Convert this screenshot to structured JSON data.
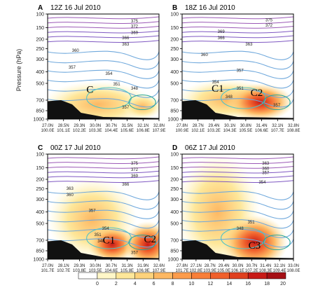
{
  "chart_data": {
    "type": "contour",
    "ylabel": "Pressure (hPa)",
    "y_ticks": [
      "100",
      "150",
      "200",
      "250",
      "300",
      "400",
      "500",
      "700",
      "850",
      "1000"
    ],
    "colorbar": {
      "ticks": [
        "0",
        "2",
        "4",
        "6",
        "8",
        "10",
        "12",
        "14",
        "16",
        "18",
        "20"
      ],
      "colors": [
        "#ffffff",
        "#fff7c8",
        "#fee79a",
        "#fdd27b",
        "#fdb863",
        "#fc9c4c",
        "#f97f39",
        "#f0602c",
        "#e0401f",
        "#c81b18",
        "#a50f15"
      ]
    },
    "panels": [
      {
        "letter": "A",
        "title": "12Z 16 Jul 2010",
        "x_ticks": [
          [
            "27.0N",
            "100.0E"
          ],
          [
            "28.5N",
            "101.1E"
          ],
          [
            "29.3N",
            "102.2E"
          ],
          [
            "30.0N",
            "103.3E"
          ],
          [
            "30.7N",
            "104.4E"
          ],
          [
            "31.5N",
            "105.6E"
          ],
          [
            "32.1N",
            "106.8E"
          ],
          [
            "32.8N",
            "107.9E"
          ]
        ],
        "contour_labels": [
          "375",
          "372",
          "369",
          "366",
          "363",
          "360",
          "357",
          "354",
          "351",
          "348",
          "357"
        ],
        "markers": [
          "C"
        ]
      },
      {
        "letter": "B",
        "title": "18Z 16 Jul 2010",
        "x_ticks": [
          [
            "27.8N",
            "100.9E"
          ],
          [
            "28.7N",
            "102.1E"
          ],
          [
            "29.4N",
            "103.2E"
          ],
          [
            "30.1N",
            "104.3E"
          ],
          [
            "30.8N",
            "105.5E"
          ],
          [
            "31.4N",
            "106.6E"
          ],
          [
            "32.1N",
            "107.7E"
          ],
          [
            "32.8N",
            "108.8E"
          ]
        ],
        "contour_labels": [
          "375",
          "372",
          "369",
          "366",
          "363",
          "360",
          "357",
          "354",
          "351",
          "348",
          "357"
        ],
        "markers": [
          "C1",
          "C2"
        ]
      },
      {
        "letter": "C",
        "title": "00Z 17 Jul 2010",
        "x_ticks": [
          [
            "27.0N",
            "101.7E"
          ],
          [
            "28.1N",
            "102.7E"
          ],
          [
            "29.3N",
            "103.8E"
          ],
          [
            "30.0N",
            "103.5E"
          ],
          [
            "30.7N",
            "104.6E"
          ],
          [
            "31.3N",
            "105.8E"
          ],
          [
            "31.9N",
            "106.9E"
          ],
          [
            "32.6N",
            "107.9E"
          ]
        ],
        "contour_labels": [
          "375",
          "372",
          "369",
          "366",
          "363",
          "360",
          "357",
          "354",
          "351",
          "348",
          "357"
        ],
        "markers": [
          "C1",
          "C2"
        ]
      },
      {
        "letter": "D",
        "title": "06Z 17 Jul 2010",
        "x_ticks": [
          [
            "27.8N",
            "101.7E"
          ],
          [
            "27.1N",
            "102.8E"
          ],
          [
            "28.7N",
            "103.9E"
          ],
          [
            "29.4N",
            "105.0E"
          ],
          [
            "30.0N",
            "106.1E"
          ],
          [
            "30.7N",
            "107.2E"
          ],
          [
            "31.4N",
            "108.3E"
          ],
          [
            "32.1N",
            "109.4E"
          ],
          [
            "33.0N",
            "108.0E"
          ]
        ],
        "contour_labels": [
          "363",
          "360",
          "357",
          "354",
          "351",
          "348"
        ],
        "markers": [
          "C3"
        ]
      }
    ]
  }
}
